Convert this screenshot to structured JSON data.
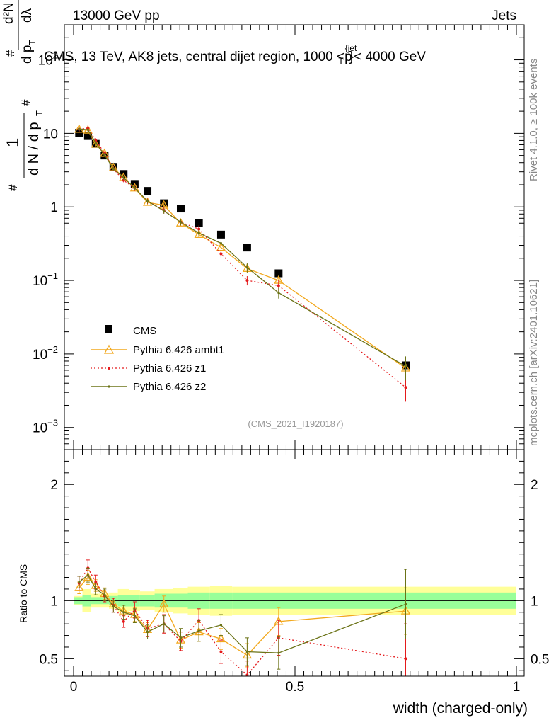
{
  "header": {
    "left": "13000 GeV pp",
    "right": "Jets"
  },
  "side_labels": {
    "rivet": "Rivet 4.1.0, ≥ 100k events",
    "mcplots": "mcplots.cern.ch [arXiv:2401.10621]"
  },
  "chart_data": {
    "type": "scatter",
    "title": "CMS, 13 TeV, AK8 jets, central dijet region, 1000 <p",
    "title_sup": "{jet",
    "title_sub": "T",
    "title_end": "}< 4000 GeV",
    "watermark": "(CMS_2021_I1920187)",
    "ylabel_parts": {
      "one": "1",
      "hash": "#",
      "dn": "d N / d p",
      "t": "T",
      "d2n": "d²N",
      "dpt": "d p",
      "dl": "dλ"
    },
    "xlabel": "width (charged-only)",
    "ratio_ylabel": "Ratio to CMS",
    "xlim": [
      0,
      1
    ],
    "ylim": [
      0.0005,
      300
    ],
    "ratio_ylim": [
      0.35,
      2.3
    ],
    "x_ticks": [
      "0",
      "0.5",
      "1"
    ],
    "y_ticks": [
      {
        "value": 0.001,
        "base": "10",
        "exp": "−3"
      },
      {
        "value": 0.01,
        "base": "10",
        "exp": "−2"
      },
      {
        "value": 0.1,
        "base": "10",
        "exp": "−1"
      },
      {
        "value": 1,
        "base": "1",
        "exp": ""
      },
      {
        "value": 10,
        "base": "10",
        "exp": ""
      },
      {
        "value": 100,
        "base": "10",
        "exp": "2"
      }
    ],
    "ratio_ticks": [
      "0.5",
      "1",
      "2"
    ],
    "x": [
      0.0125,
      0.0325,
      0.05,
      0.07,
      0.09,
      0.113,
      0.138,
      0.167,
      0.204,
      0.242,
      0.283,
      0.333,
      0.392,
      0.463,
      0.75
    ],
    "band_edges": [
      0,
      0.02,
      0.04,
      0.06,
      0.08,
      0.1,
      0.125,
      0.15,
      0.183,
      0.225,
      0.258,
      0.308,
      0.358,
      0.425,
      0.5,
      1.0
    ],
    "band_inner": [
      0.03,
      0.05,
      0.03,
      0.03,
      0.04,
      0.05,
      0.05,
      0.05,
      0.06,
      0.06,
      0.07,
      0.07,
      0.07,
      0.07,
      0.07
    ],
    "band_outer": [
      0.04,
      0.1,
      0.06,
      0.06,
      0.07,
      0.1,
      0.09,
      0.08,
      0.1,
      0.11,
      0.12,
      0.13,
      0.12,
      0.12,
      0.12
    ],
    "series": [
      {
        "name": "CMS",
        "values": [
          10.2,
          9.2,
          7.2,
          5.0,
          3.5,
          2.8,
          2.05,
          1.65,
          1.12,
          0.95,
          0.6,
          0.42,
          0.28,
          0.125,
          0.007
        ],
        "color": "#000000",
        "marker": "square"
      },
      {
        "name": "Pythia 6.426 ambt1",
        "values": [
          11.3,
          11.0,
          7.1,
          5.3,
          3.4,
          2.5,
          1.8,
          1.15,
          1.05,
          0.6,
          0.42,
          0.28,
          0.145,
          0.1,
          0.0064
        ],
        "ratio": [
          1.11,
          1.2,
          1.13,
          1.06,
          0.97,
          0.91,
          0.88,
          0.75,
          0.97,
          0.66,
          0.73,
          0.67,
          0.53,
          0.82,
          0.91
        ],
        "ratio_err": [
          0.05,
          0.06,
          0.05,
          0.05,
          0.05,
          0.05,
          0.06,
          0.06,
          0.07,
          0.07,
          0.08,
          0.09,
          0.1,
          0.12,
          0.2
        ],
        "color": "#f2a81d",
        "marker": "triangle",
        "dash": ""
      },
      {
        "name": "Pythia 6.426 z1",
        "values": [
          11.4,
          11.8,
          8.0,
          5.4,
          3.3,
          2.3,
          1.8,
          1.2,
          0.9,
          0.62,
          0.5,
          0.23,
          0.1,
          0.085,
          0.0035
        ],
        "ratio": [
          1.15,
          1.28,
          1.16,
          1.04,
          0.96,
          0.82,
          0.92,
          0.76,
          0.8,
          0.65,
          0.83,
          0.56,
          0.36,
          0.68,
          0.5
        ],
        "ratio_err": [
          0.06,
          0.07,
          0.06,
          0.05,
          0.06,
          0.05,
          0.07,
          0.07,
          0.08,
          0.08,
          0.1,
          0.1,
          0.12,
          0.15,
          0.3
        ],
        "color": "#e41a1c",
        "marker": "dot",
        "dash": "2,3"
      },
      {
        "name": "Pythia 6.426 z2",
        "values": [
          11.5,
          11.2,
          7.4,
          5.1,
          3.3,
          2.5,
          1.8,
          1.2,
          0.88,
          0.62,
          0.44,
          0.32,
          0.15,
          0.068,
          0.0068
        ],
        "ratio": [
          1.16,
          1.22,
          1.1,
          1.05,
          0.95,
          0.9,
          0.87,
          0.73,
          0.8,
          0.68,
          0.74,
          0.79,
          0.56,
          0.55,
          0.97
        ],
        "ratio_err": [
          0.05,
          0.06,
          0.05,
          0.05,
          0.05,
          0.06,
          0.06,
          0.06,
          0.07,
          0.08,
          0.09,
          0.09,
          0.12,
          0.14,
          0.3
        ],
        "color": "#6b7317",
        "marker": "smalldot",
        "dash": ""
      }
    ]
  }
}
